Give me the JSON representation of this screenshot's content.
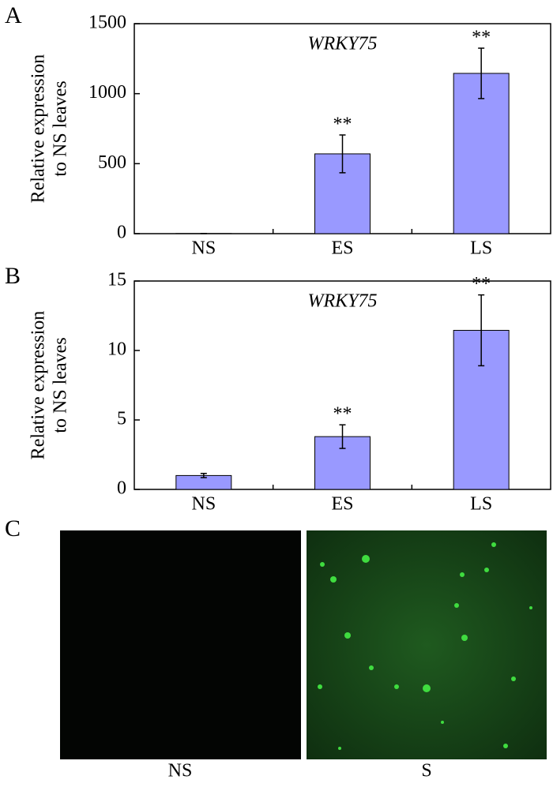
{
  "chart_data": [
    {
      "type": "bar",
      "title": "WRKY75",
      "ylabel": [
        "Relative expression",
        "to NS leaves"
      ],
      "categories": [
        "NS",
        "ES",
        "LS"
      ],
      "values": [
        1,
        570,
        1145
      ],
      "errors": [
        0,
        135,
        180
      ],
      "annotations": [
        null,
        "**",
        "**"
      ],
      "color": "#9999ff",
      "ylim": [
        0,
        1500
      ],
      "yticks": [
        0,
        500,
        1000,
        1500
      ],
      "grid": false
    },
    {
      "type": "bar",
      "title": "WRKY75",
      "ylabel": [
        "Relative expression",
        "to NS leaves"
      ],
      "categories": [
        "NS",
        "ES",
        "LS"
      ],
      "values": [
        1,
        3.8,
        11.45
      ],
      "errors": [
        0.15,
        0.85,
        2.55
      ],
      "annotations": [
        null,
        "**",
        "**"
      ],
      "color": "#9999ff",
      "ylim": [
        0,
        15
      ],
      "yticks": [
        0,
        5,
        10,
        15
      ],
      "grid": false
    }
  ],
  "panel_labels": [
    "A",
    "B",
    "C"
  ],
  "images": [
    {
      "caption": "NS"
    },
    {
      "caption": "S"
    }
  ]
}
